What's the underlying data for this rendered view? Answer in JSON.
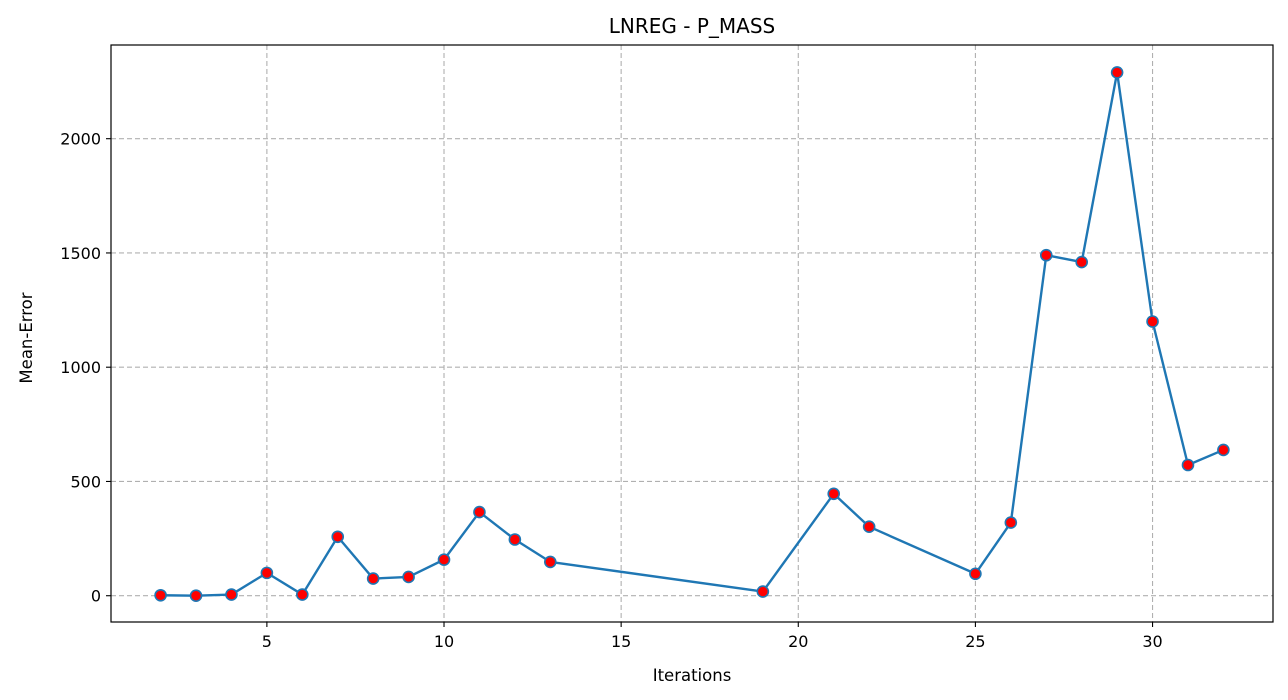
{
  "chart_data": {
    "type": "line",
    "title": "LNREG - P_MASS",
    "xlabel": "Iterations",
    "ylabel": "Mean-Error",
    "xlim": [
      0.6,
      33.4
    ],
    "ylim": [
      -115,
      2410
    ],
    "xticks": [
      5,
      10,
      15,
      20,
      25,
      30
    ],
    "yticks": [
      0,
      500,
      1000,
      1500,
      2000
    ],
    "grid": true,
    "line_color": "#1f77b4",
    "marker_face_color": "#ff0000",
    "marker_edge_color": "#1f77b4",
    "series": [
      {
        "x": [
          2,
          3,
          4,
          5,
          6,
          7,
          8,
          9,
          10,
          11,
          12,
          13,
          19,
          21,
          22,
          25,
          26,
          27,
          28,
          29,
          30,
          31,
          32
        ],
        "values": [
          2,
          0,
          5,
          100,
          5,
          258,
          75,
          82,
          158,
          366,
          246,
          148,
          18,
          446,
          302,
          96,
          320,
          1490,
          1460,
          2290,
          1200,
          572,
          638
        ]
      }
    ]
  }
}
